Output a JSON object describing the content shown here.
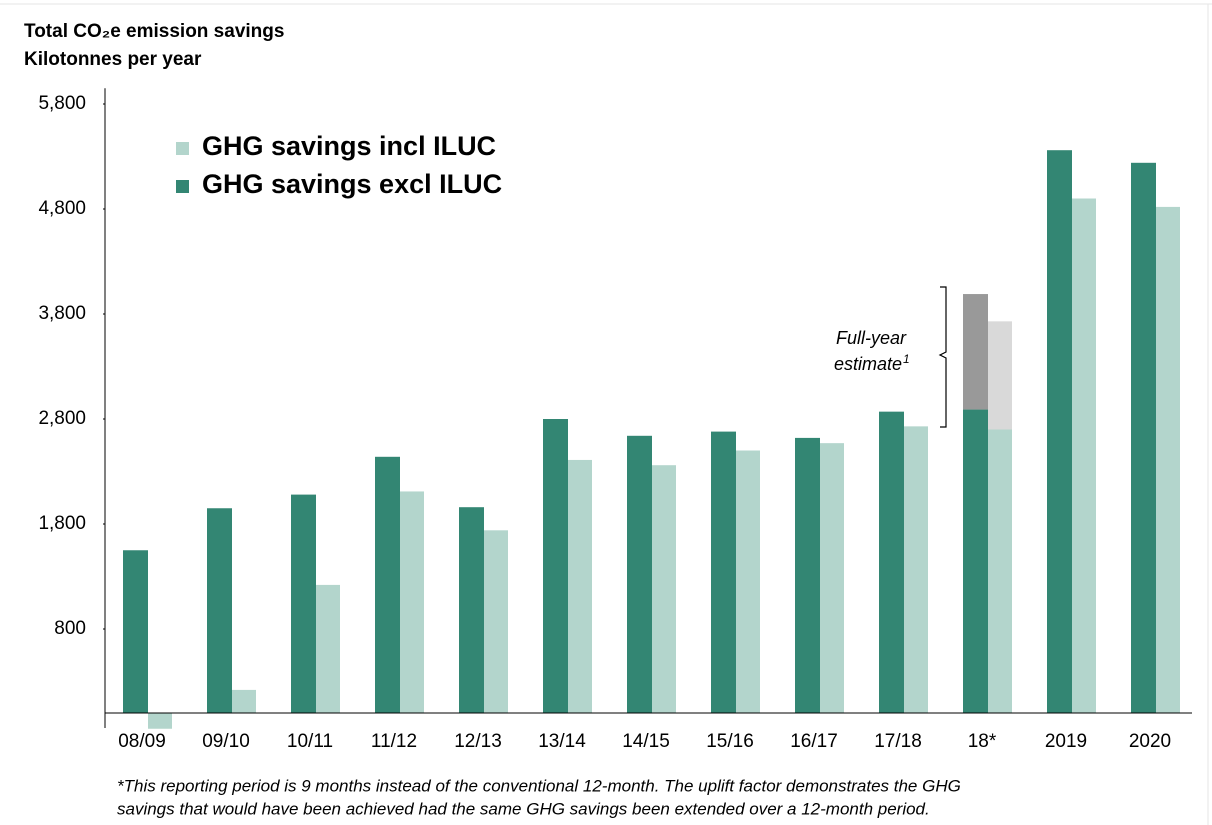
{
  "chart_data": {
    "type": "bar",
    "title": "Total CO₂e emission savings",
    "subtitle": "Kilotonnes per year",
    "categories": [
      "08/09",
      "09/10",
      "10/11",
      "11/12",
      "12/13",
      "13/14",
      "14/15",
      "15/16",
      "16/17",
      "17/18",
      "18*",
      "2019",
      "2020"
    ],
    "series": [
      {
        "name": "GHG savings incl ILUC",
        "color": "#b3d5cc",
        "values": [
          -150,
          220,
          1220,
          2110,
          1740,
          2410,
          2360,
          2500,
          2570,
          2730,
          2700,
          4900,
          4820
        ]
      },
      {
        "name": "GHG savings excl ILUC",
        "color": "#338673",
        "values": [
          1550,
          1950,
          2080,
          2440,
          1960,
          2800,
          2640,
          2680,
          2620,
          2870,
          2890,
          5360,
          5240
        ]
      }
    ],
    "estimate": {
      "label_lines": [
        "Full-year",
        "estimate"
      ],
      "footnote_mark": "1",
      "category": "18*",
      "values": [
        1030,
        1100
      ],
      "colors": [
        "#d9d9d9",
        "#999999"
      ]
    },
    "ylim": [
      -200,
      5950
    ],
    "yticks": [
      800,
      {
        "value": 1800,
        "label": "1,800"
      },
      {
        "value": 2800,
        "label": "2,800"
      },
      {
        "value": 3800,
        "label": "3,800"
      },
      {
        "value": 4800,
        "label": "4,800"
      },
      {
        "value": 5800,
        "label": "5,800"
      }
    ],
    "grid": false,
    "legend": "top-left",
    "footnote": [
      "*This reporting period is 9 months instead of the conventional 12-month. The uplift factor demonstrates the GHG",
      "savings that would have been achieved had the same GHG savings been extended over a 12-month period."
    ]
  }
}
